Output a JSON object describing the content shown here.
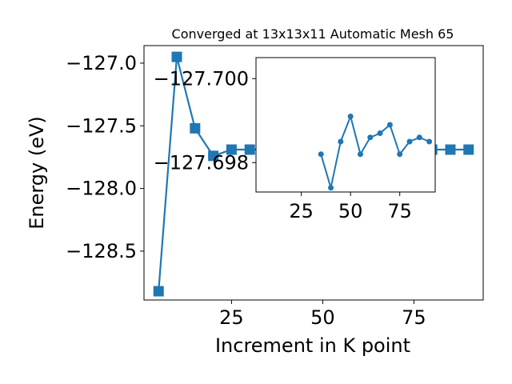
{
  "chart_data": [
    {
      "type": "line",
      "title": "Converged at 13x13x11 Automatic Mesh 65",
      "xlabel": "Increment in K point",
      "ylabel": "Energy (eV)",
      "xlim": [
        1,
        94
      ],
      "ylim": [
        -128.89,
        -126.86
      ],
      "xticks": [
        25,
        50,
        75
      ],
      "yticks": [
        -127.0,
        -127.5,
        -128.0,
        -128.5
      ],
      "ytick_labels": [
        "−127.0",
        "−127.5",
        "−128.0",
        "−128.5"
      ],
      "grid": false,
      "marker": "square",
      "series": [
        {
          "color": "#1f77b4",
          "x": [
            5,
            10,
            15,
            20,
            25,
            30,
            35,
            40,
            45,
            50,
            55,
            60,
            65,
            70,
            75,
            80,
            85,
            90
          ],
          "y": [
            -128.82,
            -126.95,
            -127.52,
            -127.74,
            -127.69,
            -127.69,
            -127.69,
            -127.69,
            -127.69,
            -127.69,
            -127.69,
            -127.69,
            -127.69,
            -127.69,
            -127.69,
            -127.69,
            -127.69,
            -127.69
          ]
        }
      ]
    },
    {
      "type": "line",
      "role": "inset",
      "xlim": [
        2,
        93
      ],
      "ylim": [
        -127.6973,
        -127.7005
      ],
      "xticks": [
        25,
        50,
        75
      ],
      "yticks": [
        -127.7,
        -127.698
      ],
      "ytick_labels": [
        "−127.700",
        "−127.698"
      ],
      "grid": false,
      "marker": "circle",
      "series": [
        {
          "color": "#1f77b4",
          "x": [
            35,
            40,
            45,
            50,
            55,
            60,
            65,
            70,
            75,
            80,
            85,
            90
          ],
          "y": [
            -127.6982,
            -127.6974,
            -127.6985,
            -127.6991,
            -127.6982,
            -127.6986,
            -127.6987,
            -127.6989,
            -127.6982,
            -127.6985,
            -127.6986,
            -127.6985
          ]
        }
      ]
    }
  ]
}
